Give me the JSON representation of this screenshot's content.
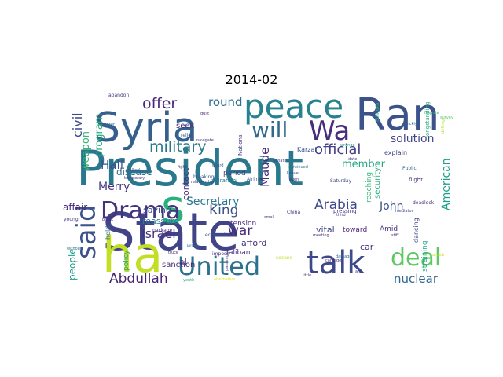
{
  "title": "2014-02",
  "words": [
    {
      "text": "President",
      "color": "#2a788e"
    },
    {
      "text": "State",
      "color": "#414487"
    },
    {
      "text": "Syria",
      "color": "#355f8d"
    },
    {
      "text": "Ran",
      "color": "#3b528b"
    },
    {
      "text": "peace",
      "color": "#26828e"
    },
    {
      "text": "ha",
      "color": "#c2df23"
    },
    {
      "text": "s",
      "color": "#2ab07f"
    },
    {
      "text": "talk",
      "color": "#3e4989"
    },
    {
      "text": "United",
      "color": "#2c728e"
    },
    {
      "text": "Drama",
      "color": "#46337f"
    },
    {
      "text": "will",
      "color": "#31688e"
    },
    {
      "text": "Wa",
      "color": "#472d7b"
    },
    {
      "text": "said",
      "color": "#3b528b"
    },
    {
      "text": "deal",
      "color": "#5ec962"
    },
    {
      "text": "military",
      "color": "#2a788e"
    },
    {
      "text": "offer",
      "color": "#482878"
    },
    {
      "text": "official",
      "color": "#433e85"
    },
    {
      "text": "Abdullah",
      "color": "#482475"
    },
    {
      "text": "Arabia",
      "color": "#3e4989"
    },
    {
      "text": "Israel",
      "color": "#46327e"
    },
    {
      "text": "King",
      "color": "#3b528b"
    },
    {
      "text": "war",
      "color": "#472c7a"
    },
    {
      "text": "Secretary",
      "color": "#2a788e"
    },
    {
      "text": "nuclear",
      "color": "#31688e"
    },
    {
      "text": "American",
      "color": "#1f9e89"
    },
    {
      "text": "Maude",
      "color": "#46337f"
    },
    {
      "text": "civil",
      "color": "#3e4989"
    },
    {
      "text": "round",
      "color": "#2e6e8e"
    },
    {
      "text": "solution",
      "color": "#414487"
    },
    {
      "text": "member",
      "color": "#22a884"
    },
    {
      "text": "John",
      "color": "#3b528b"
    },
    {
      "text": "Merry",
      "color": "#46327e"
    },
    {
      "text": "Half",
      "color": "#3b528b"
    },
    {
      "text": "disease",
      "color": "#31688e"
    },
    {
      "text": "program",
      "color": "#2ab07f"
    },
    {
      "text": "weapon",
      "color": "#35b779"
    },
    {
      "text": "contact",
      "color": "#46327e"
    },
    {
      "text": "saying",
      "color": "#3b528b"
    },
    {
      "text": "reassure",
      "color": "#2a788e"
    },
    {
      "text": "affair",
      "color": "#482878"
    },
    {
      "text": "people",
      "color": "#1f9e89"
    },
    {
      "text": "afford",
      "color": "#472d7b"
    },
    {
      "text": "vital",
      "color": "#404688"
    },
    {
      "text": "car",
      "color": "#46327e"
    },
    {
      "text": "toward",
      "color": "#482475"
    },
    {
      "text": "tension",
      "color": "#472c7a"
    },
    {
      "text": "period",
      "color": "#433e85"
    },
    {
      "text": "seek",
      "color": "#472d7b"
    },
    {
      "text": "sanction",
      "color": "#472c7a"
    },
    {
      "text": "Taliban",
      "color": "#482878"
    },
    {
      "text": "al",
      "color": "#46337f"
    },
    {
      "text": "security",
      "color": "#2ab07f"
    },
    {
      "text": "reaching",
      "color": "#35b779"
    },
    {
      "text": "explain",
      "color": "#414487"
    },
    {
      "text": "straining",
      "color": "#22a884"
    },
    {
      "text": "dancing",
      "color": "#3e4989"
    },
    {
      "text": "Amid",
      "color": "#46327e"
    },
    {
      "text": "held",
      "color": "#31688e"
    },
    {
      "text": "policy",
      "color": "#1f9e89"
    },
    {
      "text": "Karzai",
      "color": "#3b528b"
    },
    {
      "text": "Brahimi",
      "color": "#2c728e"
    },
    {
      "text": "Nations",
      "color": "#433e85"
    },
    {
      "text": "longstanding",
      "color": "#2ab07f"
    },
    {
      "text": "pressing",
      "color": "#46327e"
    },
    {
      "text": "flight",
      "color": "#482878"
    },
    {
      "text": "Public",
      "color": "#31688e"
    },
    {
      "text": "Airline",
      "color": "#3b528b"
    },
    {
      "text": "Saturday",
      "color": "#414487"
    },
    {
      "text": "China",
      "color": "#46327e"
    },
    {
      "text": "second",
      "color": "#bddf26"
    },
    {
      "text": "deadlock",
      "color": "#472d7b"
    },
    {
      "text": "mediator",
      "color": "#414487"
    },
    {
      "text": "young",
      "color": "#46327e"
    },
    {
      "text": "without",
      "color": "#2c728e"
    },
    {
      "text": "package",
      "color": "#472c7a"
    },
    {
      "text": "economic",
      "color": "#3b528b"
    },
    {
      "text": "impose",
      "color": "#46327e"
    },
    {
      "text": "meeting",
      "color": "#482878"
    },
    {
      "text": "passenger",
      "color": "#414487"
    },
    {
      "text": "alternative",
      "color": "#dde318"
    },
    {
      "text": "little",
      "color": "#46327e"
    },
    {
      "text": "third",
      "color": "#3e4989"
    },
    {
      "text": "breaking",
      "color": "#3b528b"
    },
    {
      "text": "relationship",
      "color": "#433e85"
    },
    {
      "text": "abandon",
      "color": "#46327e"
    },
    {
      "text": "relief",
      "color": "#3b528b"
    },
    {
      "text": "Senate",
      "color": "#414487"
    },
    {
      "text": "Ethiopia",
      "color": "#2ab07f"
    },
    {
      "text": "drifting",
      "color": "#b5de2b"
    },
    {
      "text": "date",
      "color": "#46327e"
    },
    {
      "text": "even",
      "color": "#472d7b"
    },
    {
      "text": "center",
      "color": "#31688e"
    },
    {
      "text": "truce",
      "color": "#482878"
    },
    {
      "text": "youth",
      "color": "#2ab07f"
    },
    {
      "text": "stalked",
      "color": "#3b528b"
    },
    {
      "text": "temporary",
      "color": "#46327e"
    },
    {
      "text": "continued",
      "color": "#2a788e"
    },
    {
      "text": "carnage",
      "color": "#482475"
    },
    {
      "text": "survey",
      "color": "#5ec962"
    },
    {
      "text": "dispute",
      "color": "#35b779"
    },
    {
      "text": "attack",
      "color": "#c2df23"
    },
    {
      "text": "break",
      "color": "#472d7b"
    },
    {
      "text": "small",
      "color": "#3e4989"
    },
    {
      "text": "navigate",
      "color": "#46327e"
    },
    {
      "text": "arrange",
      "color": "#1f9e89"
    },
    {
      "text": "damage",
      "color": "#31688e"
    },
    {
      "text": "guilt",
      "color": "#482878"
    },
    {
      "text": "killing",
      "color": "#2c728e"
    },
    {
      "text": "fight",
      "color": "#46337f"
    },
    {
      "text": "guard",
      "color": "#3b528b"
    },
    {
      "text": "Leave",
      "color": "#414487"
    },
    {
      "text": "aid",
      "color": "#46327e"
    },
    {
      "text": "stiff",
      "color": "#482878"
    },
    {
      "text": "quickly",
      "color": "#31688e"
    }
  ]
}
